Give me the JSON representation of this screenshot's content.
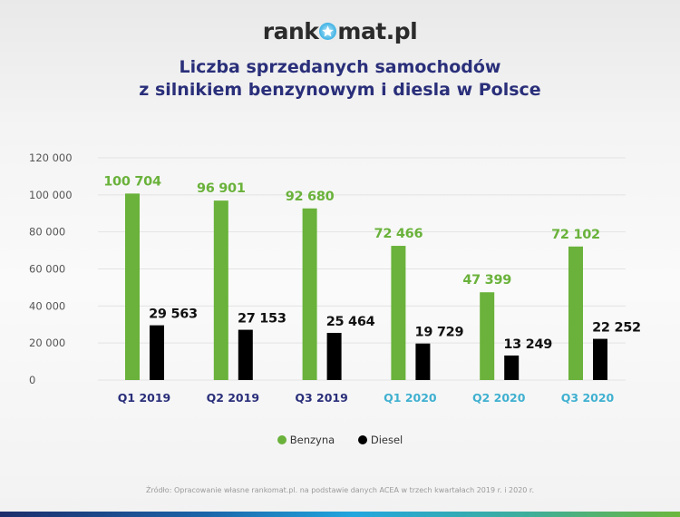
{
  "logo": {
    "left": "rank",
    "right": "mat.pl",
    "star_icon": "star-badge-icon"
  },
  "header": {
    "title_line1": "Liczba sprzedanych samochodów",
    "title_line2": "z silnikiem benzynowym i diesla w Polsce"
  },
  "legend": [
    {
      "label": "Benzyna",
      "color": "#6ab23b"
    },
    {
      "label": "Diesel",
      "color": "#000000"
    }
  ],
  "source": "Źródło: Opracowanie własne rankomat.pl. na podstawie danych ACEA w trzech kwartałach 2019 r. i 2020 r.",
  "chart_data": {
    "type": "bar",
    "title": "Liczba sprzedanych samochodów z silnikiem benzynowym i diesla w Polsce",
    "xlabel": "",
    "ylabel": "",
    "ylim": [
      0,
      120000
    ],
    "grid": true,
    "legend_position": "bottom",
    "yticks": [
      0,
      20000,
      40000,
      60000,
      80000,
      100000,
      120000
    ],
    "ytick_labels": [
      "0",
      "20 000",
      "40 000",
      "60 000",
      "80 000",
      "100 000",
      "120 000"
    ],
    "categories": [
      "Q1 2019",
      "Q2 2019",
      "Q3 2019",
      "Q1 2020",
      "Q2 2020",
      "Q3 2020"
    ],
    "category_colors": [
      "#2a2f7a",
      "#2a2f7a",
      "#2a2f7a",
      "#3fb0d0",
      "#3fb0d0",
      "#3fb0d0"
    ],
    "series": [
      {
        "name": "Benzyna",
        "color": "#6ab23b",
        "values": [
          100704,
          96901,
          92680,
          72466,
          47399,
          72102
        ],
        "labels": [
          "100 704",
          "96 901",
          "92 680",
          "72 466",
          "47 399",
          "72 102"
        ]
      },
      {
        "name": "Diesel",
        "color": "#000000",
        "values": [
          29563,
          27153,
          25464,
          19729,
          13249,
          22252
        ],
        "labels": [
          "29 563",
          "27 153",
          "25 464",
          "19 729",
          "13 249",
          "22 252"
        ]
      }
    ]
  }
}
